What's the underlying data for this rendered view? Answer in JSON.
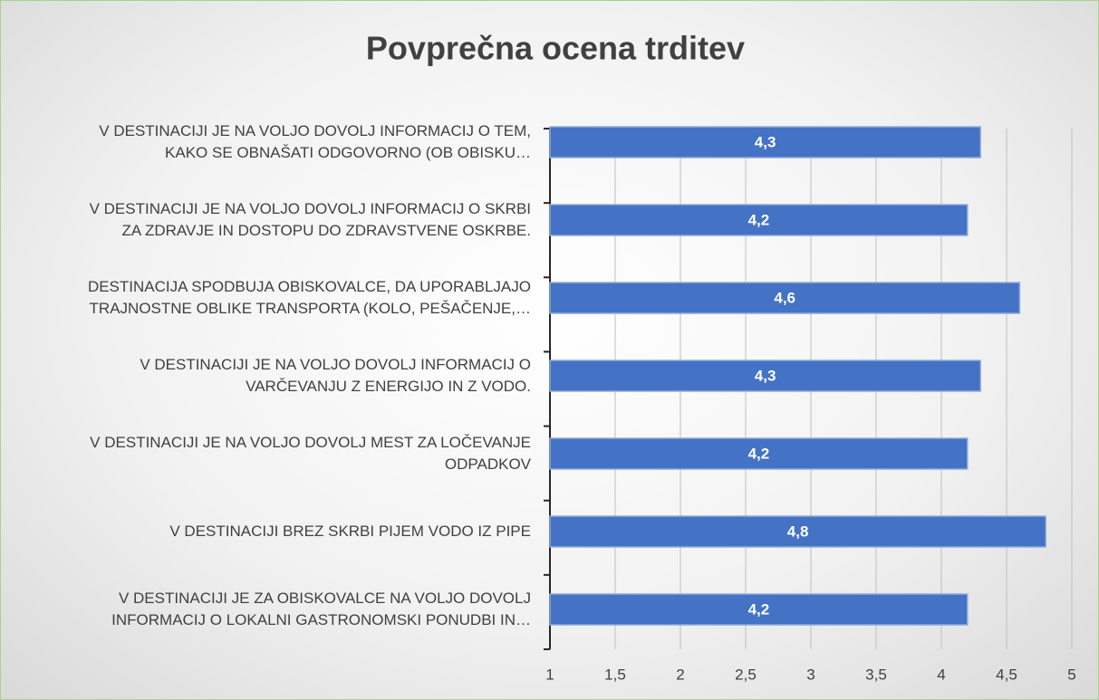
{
  "chart_data": {
    "type": "bar",
    "orientation": "horizontal",
    "title": "Povprečna ocena trditev",
    "categories": [
      "V DESTINACIJI JE NA VOLJO DOVOLJ INFORMACIJ O TEM,\nKAKO SE OBNAŠATI ODGOVORNO (OB OBISKU…",
      "V DESTINACIJI JE NA VOLJO DOVOLJ INFORMACIJ O SKRBI\nZA ZDRAVJE IN DOSTOPU DO ZDRAVSTVENE OSKRBE.",
      "DESTINACIJA SPODBUJA OBISKOVALCE, DA UPORABLJAJO\nTRAJNOSTNE OBLIKE TRANSPORTA (KOLO, PEŠAČENJE,…",
      "V DESTINACIJI JE NA VOLJO DOVOLJ INFORMACIJ O\nVARČEVANJU Z ENERGIJO IN Z VODO.",
      "V DESTINACIJI JE NA VOLJO DOVOLJ MEST ZA LOČEVANJE\nODPADKOV",
      "V DESTINACIJI BREZ SKRBI PIJEM VODO IZ PIPE",
      "V DESTINACIJI JE ZA OBISKOVALCE NA VOLJO DOVOLJ\nINFORMACIJ O LOKALNI GASTRONOMSKI PONUDBI IN…"
    ],
    "values": [
      4.3,
      4.2,
      4.6,
      4.3,
      4.2,
      4.8,
      4.2
    ],
    "value_labels": [
      "4,3",
      "4,2",
      "4,6",
      "4,3",
      "4,2",
      "4,8",
      "4,2"
    ],
    "color": "#4472c4",
    "xlim": [
      1,
      5
    ],
    "xticks": [
      1,
      {
        "value": 1.5,
        "label": "1,5"
      },
      2,
      {
        "value": 2.5,
        "label": "2,5"
      },
      3,
      {
        "value": 3.5,
        "label": "3,5"
      },
      4,
      {
        "value": 4.5,
        "label": "4,5"
      },
      5
    ],
    "grid": true
  }
}
